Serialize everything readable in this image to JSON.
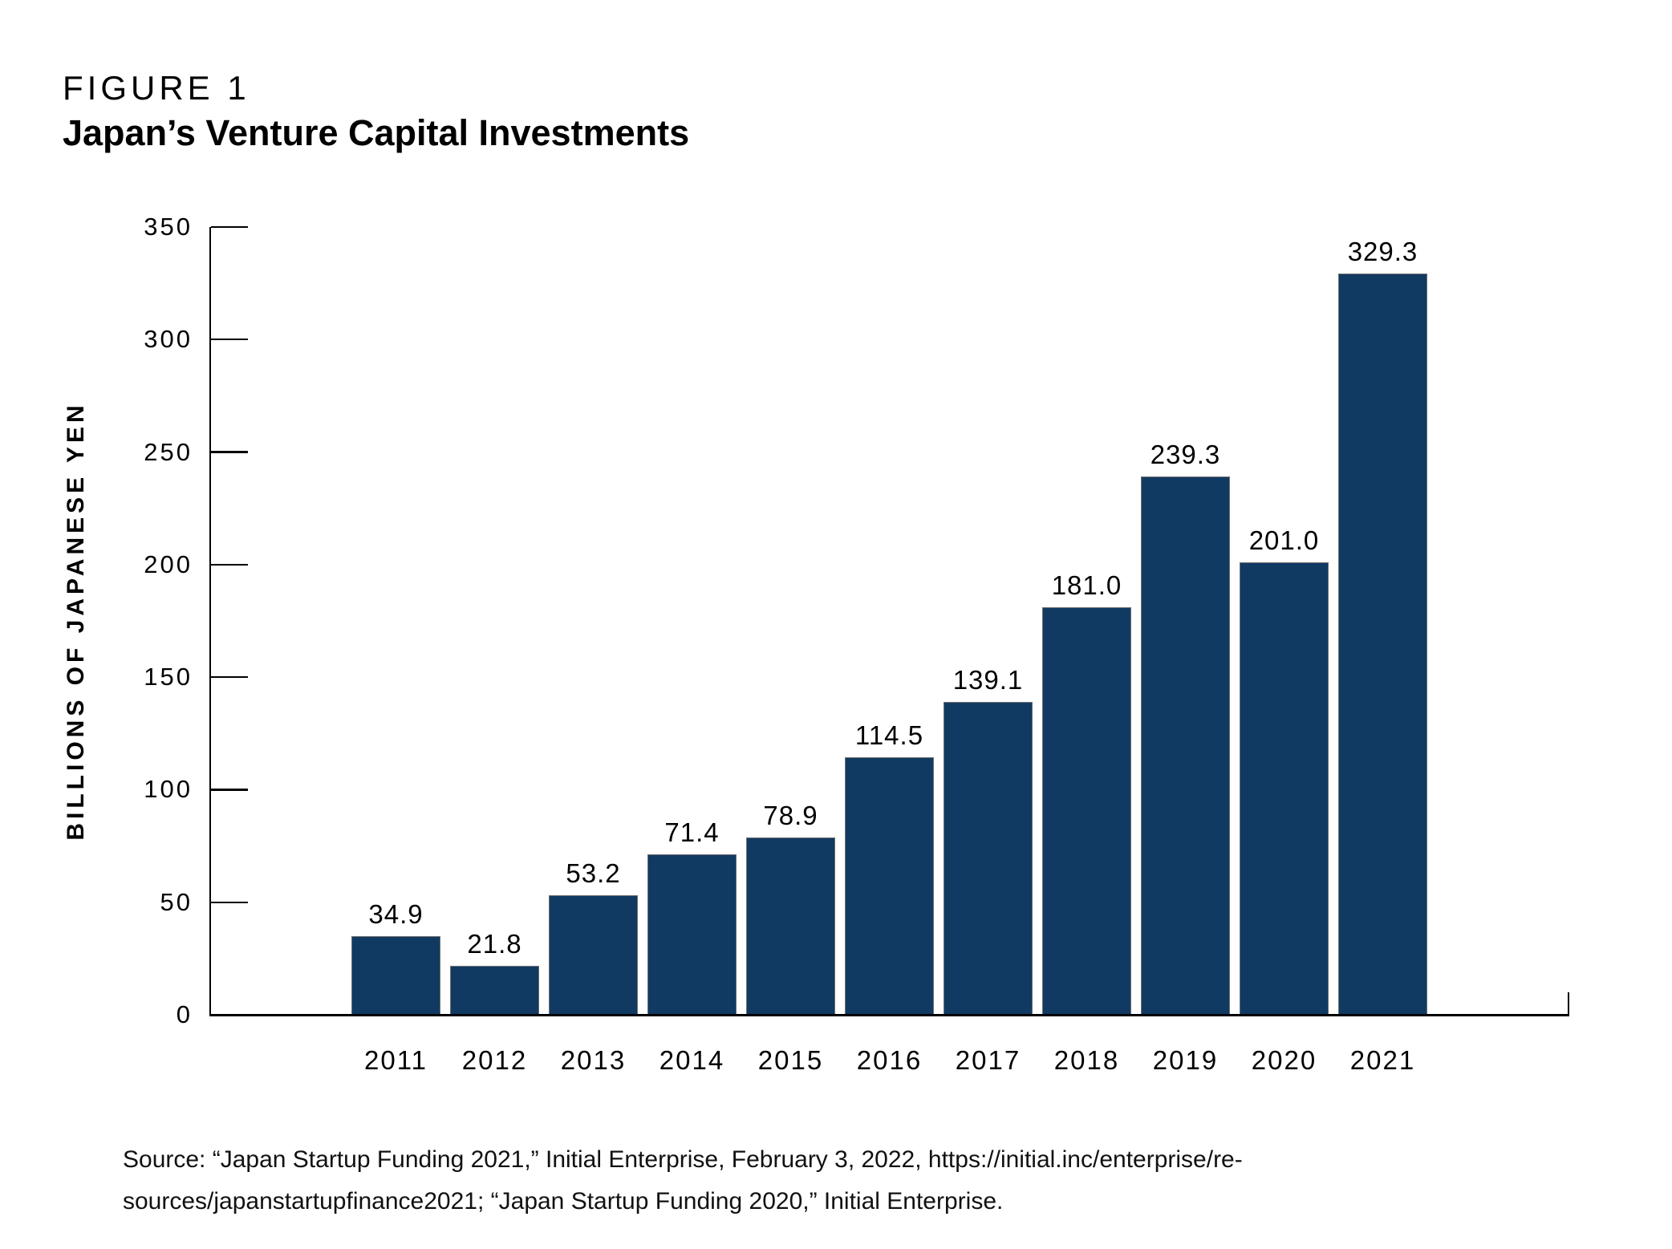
{
  "figure_label": "FIGURE 1",
  "title": "Japan’s Venture Capital Investments",
  "source": {
    "lines": [
      "Source: “Japan Startup Funding 2021,” Initial Enterprise, February 3, 2022, https://initial.inc/enterprise/re-",
      "sources/japanstartupfinance2021; “Japan Startup Funding 2020,” Initial Enterprise."
    ]
  },
  "chart_data": {
    "type": "bar",
    "title": "Japan’s Venture Capital Investments",
    "figure_label": "FIGURE 1",
    "categories": [
      "2011",
      "2012",
      "2013",
      "2014",
      "2015",
      "2016",
      "2017",
      "2018",
      "2019",
      "2020",
      "2021"
    ],
    "values": [
      34.9,
      21.8,
      53.2,
      71.4,
      78.9,
      114.5,
      139.1,
      181.0,
      239.3,
      201.0,
      329.3
    ],
    "value_labels": [
      "34.9",
      "21.8",
      "53.2",
      "71.4",
      "78.9",
      "114.5",
      "139.1",
      "181.0",
      "239.3",
      "201.0",
      "329.3"
    ],
    "xlabel": "",
    "ylabel": "BILLIONS OF JAPANESE YEN",
    "ylim": [
      0,
      350
    ],
    "yticks": [
      0,
      50,
      100,
      150,
      200,
      250,
      300,
      350
    ],
    "grid": false,
    "legend": "none",
    "bar_color": "#113A62",
    "bar_edge_color": "#707070",
    "axis_color": "#000000",
    "text_color": "#000000"
  }
}
